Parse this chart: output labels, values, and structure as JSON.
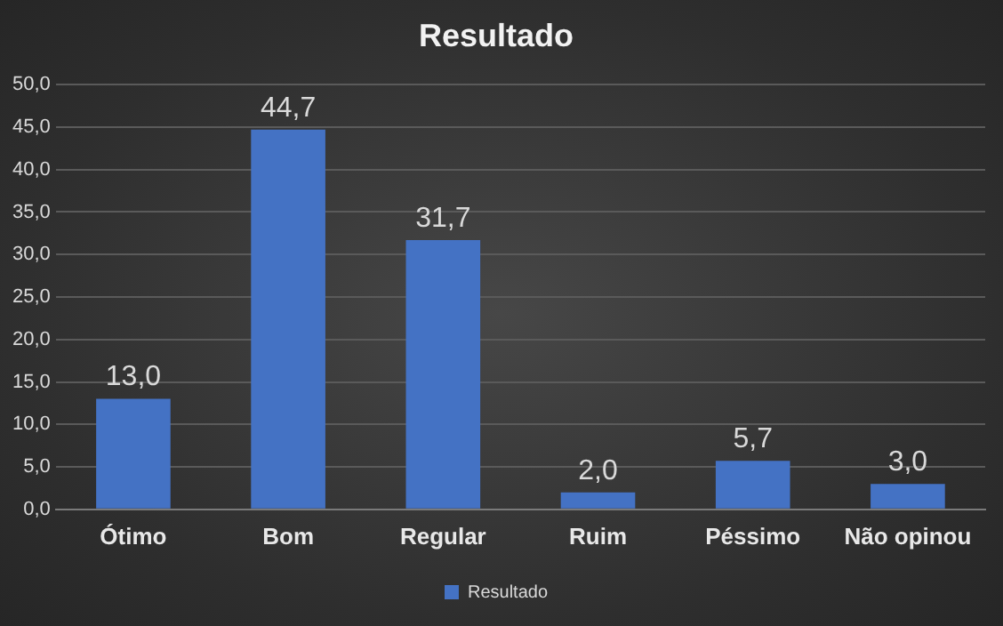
{
  "chart_data": {
    "type": "bar",
    "title": "Resultado",
    "categories": [
      "Ótimo",
      "Bom",
      "Regular",
      "Ruim",
      "Péssimo",
      "Não opinou"
    ],
    "series": [
      {
        "name": "Resultado",
        "color": "#4472c4",
        "values": [
          13.0,
          44.7,
          31.7,
          2.0,
          5.7,
          3.0
        ],
        "value_labels": [
          "13,0",
          "44,7",
          "31,7",
          "2,0",
          "5,7",
          "3,0"
        ]
      }
    ],
    "ylim": [
      0,
      50
    ],
    "yticks": [
      {
        "value": 0,
        "label": "0,0"
      },
      {
        "value": 5,
        "label": "5,0"
      },
      {
        "value": 10,
        "label": "10,0"
      },
      {
        "value": 15,
        "label": "15,0"
      },
      {
        "value": 20,
        "label": "20,0"
      },
      {
        "value": 25,
        "label": "25,0"
      },
      {
        "value": 30,
        "label": "30,0"
      },
      {
        "value": 35,
        "label": "35,0"
      },
      {
        "value": 40,
        "label": "40,0"
      },
      {
        "value": 45,
        "label": "45,0"
      },
      {
        "value": 50,
        "label": "50,0"
      }
    ],
    "grid": "y",
    "legend": "bottom"
  }
}
